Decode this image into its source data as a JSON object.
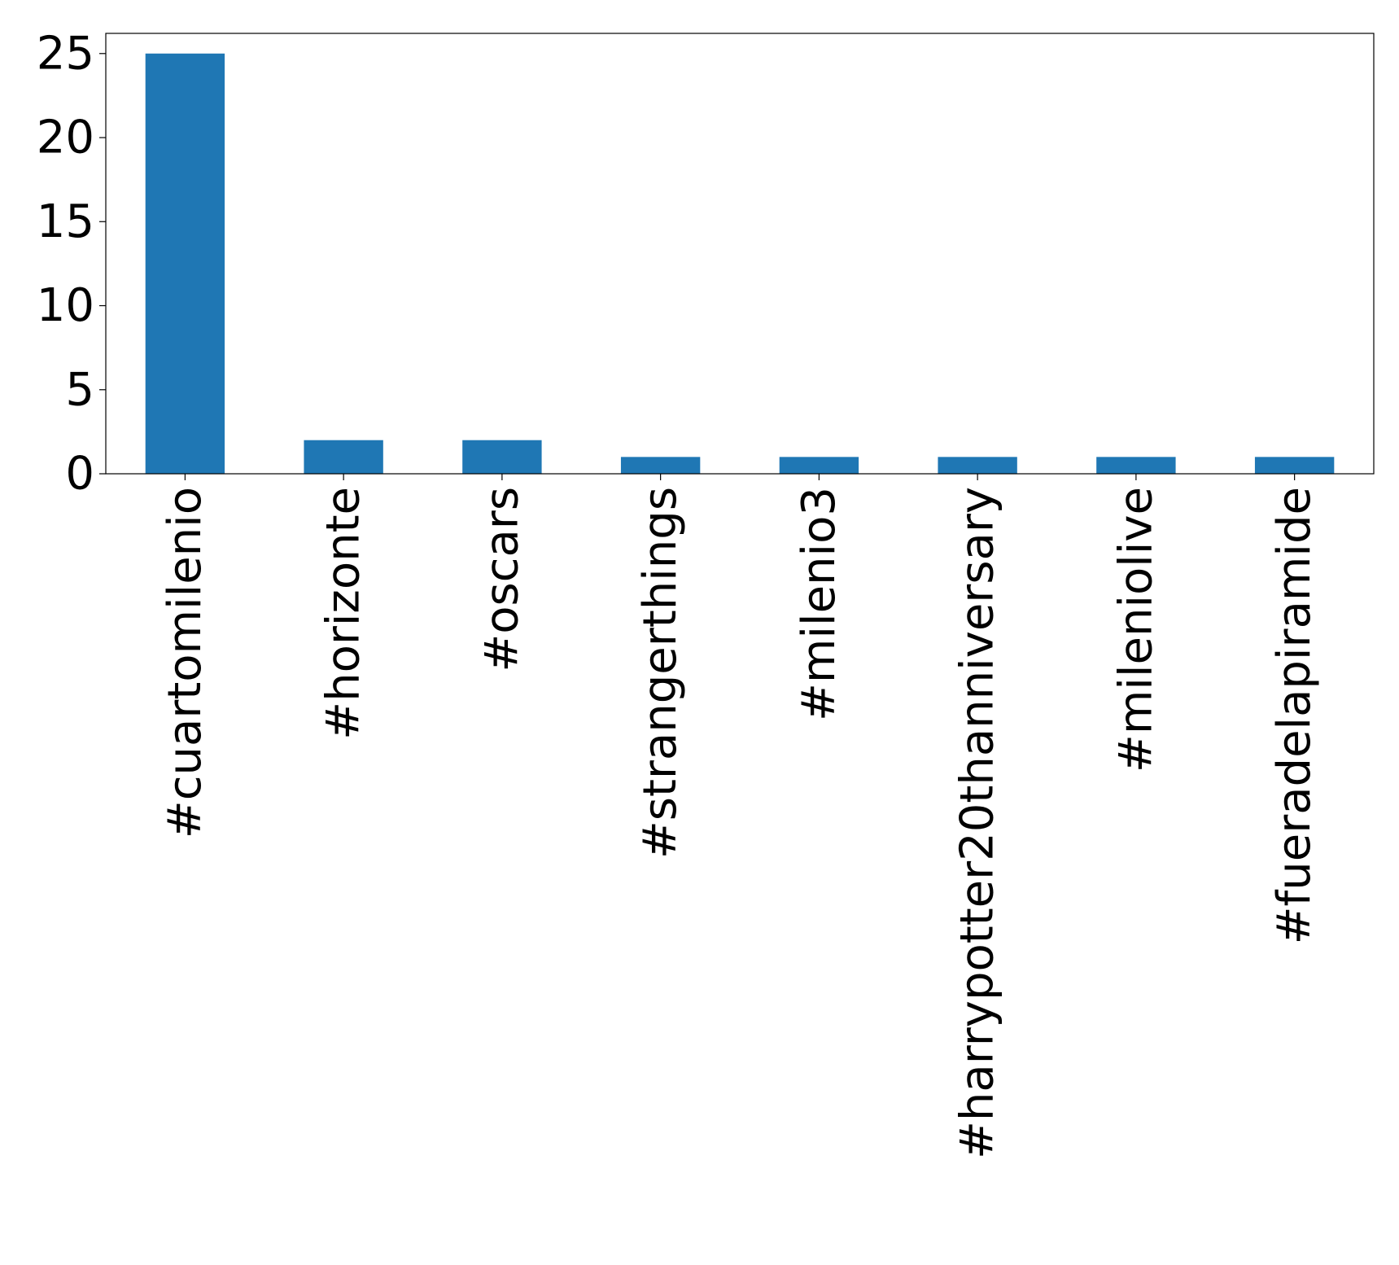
{
  "chart_data": {
    "type": "bar",
    "title": "",
    "xlabel": "",
    "ylabel": "",
    "categories": [
      "#cuartomilenio",
      "#horizonte",
      "#oscars",
      "#strangerthings",
      "#milenio3",
      "#harrypotter20thanniversary",
      "#mileniolive",
      "#fueradelapiramide"
    ],
    "values": [
      25,
      2,
      2,
      1,
      1,
      1,
      1,
      1
    ],
    "ylim": [
      0,
      26.2
    ],
    "yticks": [
      0,
      5,
      10,
      15,
      20,
      25
    ],
    "ytick_labels": [
      "0",
      "5",
      "10",
      "15",
      "20",
      "25"
    ],
    "grid": false,
    "legend": "none",
    "colors": {
      "bar": "#1f77b4",
      "axis": "#000000",
      "background": "#ffffff"
    }
  }
}
